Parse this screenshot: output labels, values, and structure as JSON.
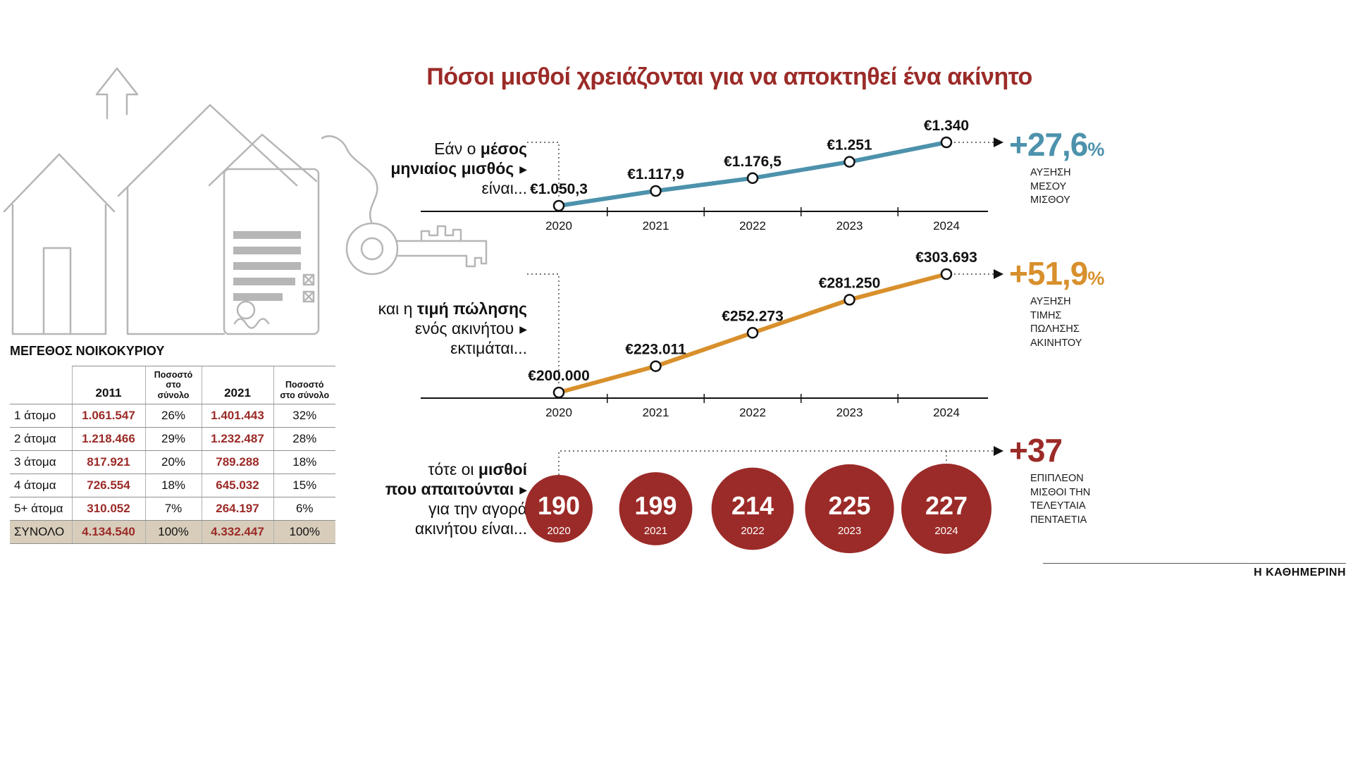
{
  "title": "Πόσοι μισθοί χρειάζονται για να αποκτηθεί ένα ακίνητο",
  "branding": "Η ΚΑΘΗΜΕΡΙΝΗ",
  "colors": {
    "accent_red": "#9b2b28",
    "salary_line": "#4d92ac",
    "price_line": "#d8902c",
    "total_row_bg": "#d8cdbb",
    "sketch_gray": "#b6b6b6"
  },
  "annotations": {
    "salary": {
      "lines": [
        {
          "segments": [
            {
              "text": "Εάν ο "
            },
            {
              "text": "μέσος",
              "bold": true
            }
          ],
          "arrow": false
        },
        {
          "segments": [
            {
              "text": "μηνιαίος μισθός",
              "bold": true
            }
          ],
          "arrow": true
        },
        {
          "segments": [
            {
              "text": "είναι..."
            }
          ],
          "arrow": false
        }
      ]
    },
    "price": {
      "lines": [
        {
          "segments": [
            {
              "text": "και η "
            },
            {
              "text": "τιμή πώλησης",
              "bold": true
            }
          ],
          "arrow": false
        },
        {
          "segments": [
            {
              "text": "ενός ακινήτου"
            }
          ],
          "arrow": true
        },
        {
          "segments": [
            {
              "text": "εκτιμάται..."
            }
          ],
          "arrow": false
        }
      ]
    },
    "wages": {
      "lines": [
        {
          "segments": [
            {
              "text": "τότε οι "
            },
            {
              "text": "μισθοί",
              "bold": true
            }
          ],
          "arrow": false
        },
        {
          "segments": [
            {
              "text": "που απαιτούνται",
              "bold": true
            }
          ],
          "arrow": true
        },
        {
          "segments": [
            {
              "text": "για την αγορά"
            }
          ],
          "arrow": false
        },
        {
          "segments": [
            {
              "text": "ακινήτου είναι..."
            }
          ],
          "arrow": false
        }
      ]
    }
  },
  "chart_data": [
    {
      "id": "salary",
      "type": "line",
      "title": "Εάν ο μέσος μηνιαίος μισθός είναι...",
      "x": [
        "2020",
        "2021",
        "2022",
        "2023",
        "2024"
      ],
      "values": [
        1050.3,
        1117.9,
        1176.5,
        1251,
        1340
      ],
      "value_labels": [
        "€1.050,3",
        "€1.117,9",
        "€1.176,5",
        "€1.251",
        "€1.340"
      ],
      "line_color": "#4d92ac",
      "summary": {
        "value": "+27,6",
        "unit": "%",
        "caption": [
          "ΑΥΞΗΣΗ",
          "ΜΕΣΟΥ",
          "ΜΙΣΘΟΥ"
        ]
      }
    },
    {
      "id": "price",
      "type": "line",
      "title": "και η τιμή πώλησης ενός ακινήτου εκτιμάται...",
      "x": [
        "2020",
        "2021",
        "2022",
        "2023",
        "2024"
      ],
      "values": [
        200000,
        223011,
        252273,
        281250,
        303693
      ],
      "value_labels": [
        "€200.000",
        "€223.011",
        "€252.273",
        "€281.250",
        "€303.693"
      ],
      "line_color": "#d8902c",
      "summary": {
        "value": "+51,9",
        "unit": "%",
        "caption": [
          "ΑΥΞΗΣΗ",
          "ΤΙΜΗΣ",
          "ΠΩΛΗΣΗΣ",
          "ΑΚΙΝΗΤΟΥ"
        ]
      }
    },
    {
      "id": "wages",
      "type": "bubble",
      "title": "τότε οι μισθοί που απαιτούνται για την αγορά ακινήτου είναι...",
      "x": [
        "2020",
        "2021",
        "2022",
        "2023",
        "2024"
      ],
      "values": [
        190,
        199,
        214,
        225,
        227
      ],
      "circle_color": "#9b2b28",
      "summary": {
        "value": "+37",
        "unit": "",
        "caption": [
          "ΕΠΙΠΛΕΟΝ",
          "ΜΙΣΘΟΙ ΤΗΝ",
          "ΤΕΛΕΥΤΑΙΑ",
          "ΠΕΝΤΑΕΤΙΑ"
        ]
      }
    }
  ],
  "table": {
    "title": "ΜΕΓΕΘΟΣ ΝΟΙΚΟΚΥΡΙΟΥ",
    "headers": [
      "",
      "2011",
      "Ποσοστό στο σύνολο",
      "2021",
      "Ποσοστό στο σύνολο"
    ],
    "rows": [
      {
        "label": "1 άτομο",
        "v2011": "1.061.547",
        "p2011": "26%",
        "v2021": "1.401.443",
        "p2021": "32%"
      },
      {
        "label": "2 άτομα",
        "v2011": "1.218.466",
        "p2011": "29%",
        "v2021": "1.232.487",
        "p2021": "28%"
      },
      {
        "label": "3 άτομα",
        "v2011": "817.921",
        "p2011": "20%",
        "v2021": "789.288",
        "p2021": "18%"
      },
      {
        "label": "4 άτομα",
        "v2011": "726.554",
        "p2011": "18%",
        "v2021": "645.032",
        "p2021": "15%"
      },
      {
        "label": "5+ άτομα",
        "v2011": "310.052",
        "p2011": "7%",
        "v2021": "264.197",
        "p2021": "6%"
      }
    ],
    "total": {
      "label": "ΣΥΝΟΛΟ",
      "v2011": "4.134.540",
      "p2011": "100%",
      "v2021": "4.332.447",
      "p2021": "100%"
    }
  }
}
